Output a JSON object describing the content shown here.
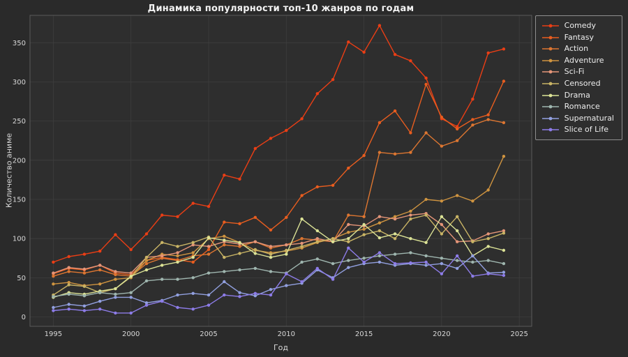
{
  "figure": {
    "bg": "#2a2a2a",
    "axes_bg": "#2e2e2e",
    "grid_color": "#3e3e3e",
    "spine_color": "#5a5a5a",
    "tick_color": "#d8d8d8",
    "text_color": "#f2f2f2"
  },
  "chart_data": {
    "type": "line",
    "title": "Динамика популярности топ-10 жанров по годам",
    "xlabel": "Год",
    "ylabel": "Количество аниме",
    "legend_position": "upper right outside",
    "grid": true,
    "xlim": [
      1993.5,
      2025.8
    ],
    "ylim": [
      -12,
      385
    ],
    "xticks": [
      1995,
      2000,
      2005,
      2010,
      2015,
      2020,
      2025
    ],
    "yticks": [
      0,
      50,
      100,
      150,
      200,
      250,
      300,
      350
    ],
    "x": [
      1995,
      1996,
      1997,
      1998,
      1999,
      2000,
      2001,
      2002,
      2003,
      2004,
      2005,
      2006,
      2007,
      2008,
      2009,
      2010,
      2011,
      2012,
      2013,
      2014,
      2015,
      2016,
      2017,
      2018,
      2019,
      2020,
      2021,
      2022,
      2023,
      2024
    ],
    "series": [
      {
        "name": "Comedy",
        "color": "#ea3e15",
        "values": [
          70,
          77,
          80,
          84,
          105,
          86,
          106,
          130,
          128,
          145,
          141,
          181,
          176,
          215,
          228,
          238,
          253,
          285,
          303,
          351,
          338,
          372,
          335,
          327,
          305,
          253,
          243,
          278,
          337,
          342
        ]
      },
      {
        "name": "Fantasy",
        "color": "#e85d1f",
        "values": [
          55,
          62,
          60,
          66,
          56,
          54,
          72,
          76,
          73,
          70,
          86,
          121,
          119,
          127,
          111,
          127,
          155,
          166,
          168,
          190,
          206,
          248,
          263,
          235,
          297,
          255,
          240,
          252,
          258,
          301
        ]
      },
      {
        "name": "Action",
        "color": "#dd7631",
        "values": [
          52,
          58,
          56,
          60,
          54,
          52,
          68,
          75,
          72,
          78,
          80,
          92,
          90,
          96,
          88,
          92,
          100,
          98,
          96,
          130,
          128,
          210,
          208,
          210,
          235,
          218,
          225,
          245,
          252,
          248
        ]
      },
      {
        "name": "Adventure",
        "color": "#cf9440",
        "values": [
          42,
          44,
          40,
          42,
          48,
          50,
          72,
          80,
          78,
          82,
          100,
          103,
          95,
          85,
          82,
          84,
          88,
          95,
          100,
          108,
          112,
          120,
          128,
          135,
          150,
          148,
          155,
          148,
          162,
          205
        ]
      },
      {
        "name": "Sci-Fi",
        "color": "#e59578",
        "values": [
          56,
          63,
          61,
          66,
          58,
          56,
          76,
          78,
          82,
          92,
          90,
          96,
          93,
          96,
          90,
          92,
          94,
          100,
          96,
          118,
          116,
          128,
          125,
          130,
          132,
          118,
          96,
          97,
          106,
          110
        ]
      },
      {
        "name": "Censored",
        "color": "#c9b465",
        "values": [
          28,
          41,
          39,
          31,
          36,
          51,
          76,
          95,
          90,
          95,
          102,
          76,
          81,
          86,
          80,
          85,
          90,
          96,
          100,
          96,
          105,
          110,
          100,
          125,
          130,
          106,
          128,
          96,
          100,
          107
        ]
      },
      {
        "name": "Drama",
        "color": "#dce396",
        "values": [
          25,
          31,
          29,
          33,
          36,
          52,
          60,
          66,
          70,
          76,
          101,
          98,
          95,
          81,
          76,
          80,
          125,
          110,
          96,
          100,
          118,
          101,
          106,
          100,
          95,
          128,
          110,
          78,
          90,
          85
        ]
      },
      {
        "name": "Romance",
        "color": "#9fb6af",
        "values": [
          26,
          29,
          27,
          31,
          29,
          31,
          46,
          48,
          48,
          50,
          56,
          58,
          60,
          62,
          58,
          56,
          70,
          74,
          68,
          72,
          75,
          78,
          80,
          82,
          78,
          75,
          72,
          70,
          72,
          68
        ]
      },
      {
        "name": "Supernatural",
        "color": "#92a0e0",
        "values": [
          12,
          16,
          14,
          20,
          25,
          25,
          18,
          21,
          28,
          30,
          28,
          45,
          31,
          27,
          35,
          40,
          43,
          60,
          50,
          63,
          68,
          70,
          66,
          68,
          66,
          68,
          62,
          78,
          56,
          57
        ]
      },
      {
        "name": "Slice of Life",
        "color": "#8d7ce8",
        "values": [
          8,
          10,
          8,
          10,
          5,
          5,
          15,
          20,
          12,
          10,
          15,
          28,
          26,
          30,
          28,
          55,
          45,
          62,
          48,
          88,
          70,
          82,
          68,
          69,
          70,
          55,
          78,
          52,
          55,
          53
        ]
      }
    ]
  }
}
